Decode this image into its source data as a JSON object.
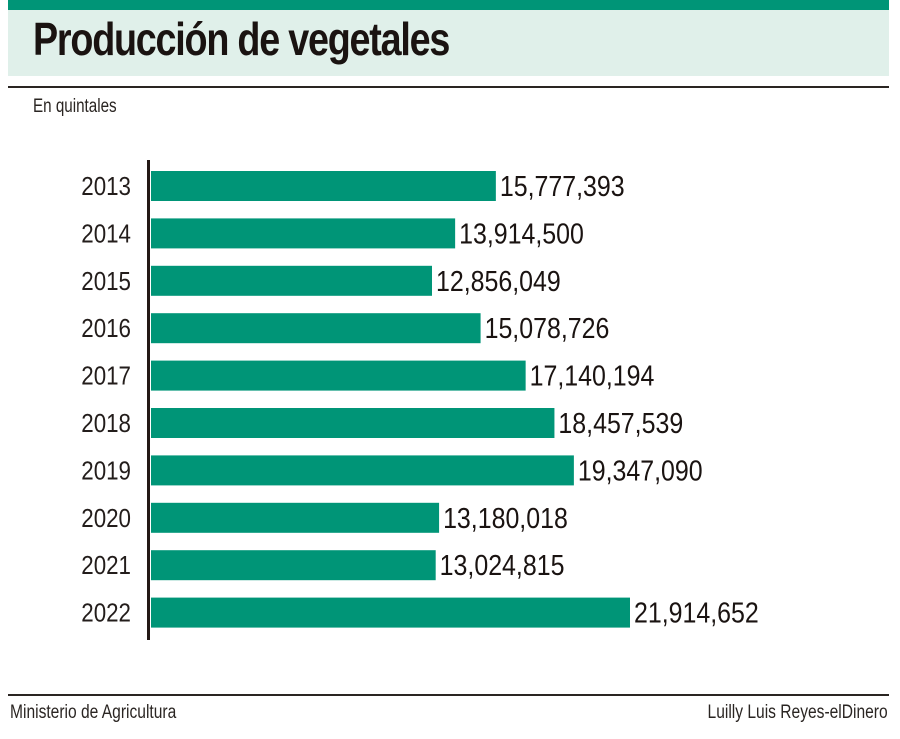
{
  "header": {
    "title": "Producción de vegetales",
    "subtitle": "En quintales"
  },
  "footer": {
    "source": "Ministerio de Agricultura",
    "credit": "Luilly Luis Reyes-elDinero"
  },
  "colors": {
    "accent": "#009577",
    "title_band": "#e0f0ea",
    "text": "#1a1311"
  },
  "chart_data": {
    "type": "bar",
    "orientation": "horizontal",
    "title": "Producción de vegetales",
    "subtitle": "En quintales",
    "xlabel": "",
    "ylabel": "",
    "categories": [
      "2013",
      "2014",
      "2015",
      "2016",
      "2017",
      "2018",
      "2019",
      "2020",
      "2021",
      "2022"
    ],
    "values": [
      15777393,
      13914500,
      12856049,
      15078726,
      17140194,
      18457539,
      19347090,
      13180018,
      13024815,
      21914652
    ],
    "data_labels": [
      "15,777,393",
      "13,914,500",
      "12,856,049",
      "15,078,726",
      "17,140,194",
      "18,457,539",
      "19,347,090",
      "13,180,018",
      "13,024,815",
      "21,914,652"
    ],
    "xlim": [
      0,
      21914652
    ],
    "grid": false,
    "legend": "none",
    "bar_color": "#009577",
    "source": "Ministerio de Agricultura"
  }
}
